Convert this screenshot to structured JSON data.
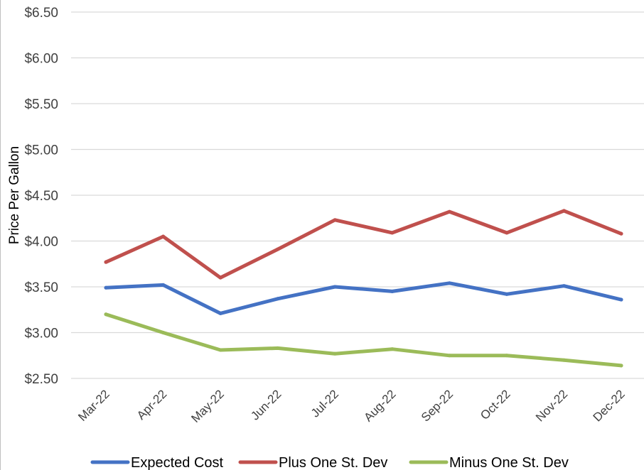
{
  "chart_data": {
    "type": "line",
    "title": "",
    "xlabel": "",
    "ylabel": "Price Per Gallon",
    "categories": [
      "Mar-22",
      "Apr-22",
      "May-22",
      "Jun-22",
      "Jul-22",
      "Aug-22",
      "Sep-22",
      "Oct-22",
      "Nov-22",
      "Dec-22"
    ],
    "ylim": [
      2.5,
      6.5
    ],
    "yticks": [
      2.5,
      3.0,
      3.5,
      4.0,
      4.5,
      5.0,
      5.5,
      6.0,
      6.5
    ],
    "ytick_labels": [
      "$2.50",
      "$3.00",
      "$3.50",
      "$4.00",
      "$4.50",
      "$5.00",
      "$5.50",
      "$6.00",
      "$6.50"
    ],
    "grid": true,
    "legend_position": "bottom",
    "series": [
      {
        "name": "Expected Cost",
        "color": "#4472c4",
        "values": [
          3.49,
          3.52,
          3.21,
          3.37,
          3.5,
          3.45,
          3.54,
          3.42,
          3.51,
          3.36
        ]
      },
      {
        "name": "Plus One St. Dev",
        "color": "#c0504d",
        "values": [
          3.77,
          4.05,
          3.6,
          3.91,
          4.23,
          4.09,
          4.32,
          4.09,
          4.33,
          4.08
        ]
      },
      {
        "name": "Minus One St. Dev",
        "color": "#9bbb59",
        "values": [
          3.2,
          3.0,
          2.81,
          2.83,
          2.77,
          2.82,
          2.75,
          2.75,
          2.7,
          2.64
        ]
      }
    ]
  }
}
